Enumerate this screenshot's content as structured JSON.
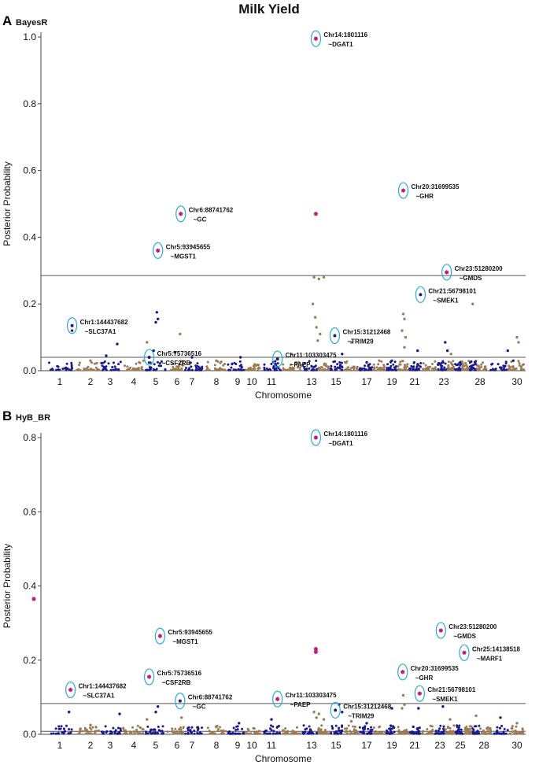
{
  "title": "Milk Yield",
  "chart_data": [
    {
      "type": "scatter",
      "panel_label": "A",
      "panel_title": "BayesR",
      "ylabel": "Posterior Probability",
      "xlabel": "Chromosome",
      "ylim": [
        0,
        1.0
      ],
      "yticks": [
        0.0,
        0.2,
        0.4,
        0.6,
        0.8,
        1.0
      ],
      "ytick_labels": [
        "0.0",
        "0.2",
        "0.4",
        "0.6",
        "0.8",
        "1.0"
      ],
      "x_tick_labels": [
        "1",
        "2",
        "3",
        "4",
        "5",
        "6",
        "7",
        "8",
        "9",
        "10",
        "11",
        "13",
        "15",
        "17",
        "19",
        "21",
        "23",
        "28",
        "30"
      ],
      "x_tick_positions": [
        1,
        2,
        3,
        4,
        5,
        6,
        7,
        8,
        9,
        10,
        11,
        13,
        15,
        17,
        19,
        21,
        23,
        28,
        30
      ],
      "thresholds": [
        0.285,
        0.04
      ],
      "colors": {
        "odd_chromosome": "#1a1a8c",
        "even_chromosome": "#9c7b55",
        "highlight": "#c2187a",
        "circle": "#29a9e0"
      },
      "series": [
        {
          "name": "background-odd",
          "color": "#1a1a8c",
          "points": [
            {
              "chr": 5.05,
              "y": 0.175
            },
            {
              "chr": 5.0,
              "y": 0.145
            },
            {
              "chr": 5.1,
              "y": 0.155
            },
            {
              "chr": 4.9,
              "y": 0.06
            },
            {
              "chr": 3.3,
              "y": 0.08
            },
            {
              "chr": 1.4,
              "y": 0.12
            },
            {
              "chr": 2.8,
              "y": 0.045
            },
            {
              "chr": 5.9,
              "y": 0.055
            },
            {
              "chr": 7.0,
              "y": 0.04
            },
            {
              "chr": 9.2,
              "y": 0.04
            },
            {
              "chr": 11.2,
              "y": 0.02
            },
            {
              "chr": 15.4,
              "y": 0.05
            },
            {
              "chr": 21.2,
              "y": 0.06
            },
            {
              "chr": 23.2,
              "y": 0.085
            },
            {
              "chr": 23.5,
              "y": 0.06
            },
            {
              "chr": 29.5,
              "y": 0.06
            },
            {
              "chr": 29.8,
              "y": 0.03
            },
            {
              "chr": 19.0,
              "y": 0.03
            },
            {
              "chr": 17.0,
              "y": 0.025
            }
          ]
        },
        {
          "name": "background-even",
          "color": "#9c7b55",
          "points": [
            {
              "chr": 6.2,
              "y": 0.11
            },
            {
              "chr": 4.6,
              "y": 0.085
            },
            {
              "chr": 13.2,
              "y": 0.28
            },
            {
              "chr": 13.6,
              "y": 0.275
            },
            {
              "chr": 13.1,
              "y": 0.2
            },
            {
              "chr": 13.3,
              "y": 0.16
            },
            {
              "chr": 13.4,
              "y": 0.13
            },
            {
              "chr": 13.7,
              "y": 0.11
            },
            {
              "chr": 13.5,
              "y": 0.09
            },
            {
              "chr": 14.0,
              "y": 0.28
            },
            {
              "chr": 20.0,
              "y": 0.17
            },
            {
              "chr": 20.1,
              "y": 0.155
            },
            {
              "chr": 19.9,
              "y": 0.12
            },
            {
              "chr": 20.2,
              "y": 0.1
            },
            {
              "chr": 20.1,
              "y": 0.07
            },
            {
              "chr": 27.0,
              "y": 0.2
            },
            {
              "chr": 30.0,
              "y": 0.1
            },
            {
              "chr": 30.1,
              "y": 0.085
            },
            {
              "chr": 24.0,
              "y": 0.05
            },
            {
              "chr": 16.0,
              "y": 0.085
            },
            {
              "chr": 12.0,
              "y": 0.05
            },
            {
              "chr": 8.0,
              "y": 0.03
            },
            {
              "chr": 18.0,
              "y": 0.03
            },
            {
              "chr": 2.0,
              "y": 0.03
            }
          ]
        }
      ],
      "highlighted": [
        {
          "chr": 13.35,
          "y": 0.995,
          "line1": "Chr14:1801116",
          "line2": "~DGAT1",
          "circled": true,
          "star": true
        },
        {
          "chr": 20.0,
          "y": 0.54,
          "line1": "Chr20:31699535",
          "line2": "~GHR",
          "circled": true,
          "star": true
        },
        {
          "chr": 6.25,
          "y": 0.47,
          "line1": "Chr6:88741762",
          "line2": "~GC",
          "circled": true,
          "star": true
        },
        {
          "chr": 13.35,
          "y": 0.47,
          "line1": "",
          "line2": "",
          "circled": false,
          "star": true
        },
        {
          "chr": 5.1,
          "y": 0.36,
          "line1": "Chr5:93945655",
          "line2": "~MGST1",
          "circled": true,
          "star": true
        },
        {
          "chr": 23.4,
          "y": 0.295,
          "line1": "Chr23:51280200",
          "line2": "~GMDS",
          "circled": true,
          "star": true
        },
        {
          "chr": 21.4,
          "y": 0.228,
          "line1": "Chr21:56798101",
          "line2": "~SMEK1",
          "circled": true,
          "star": false
        },
        {
          "chr": 1.4,
          "y": 0.135,
          "line1": "Chr1:144437682",
          "line2": "~SLC37A1",
          "circled": true,
          "star": false
        },
        {
          "chr": 14.9,
          "y": 0.105,
          "line1": "Chr15:31212468",
          "line2": "~TRIM29",
          "circled": true,
          "star": false
        },
        {
          "chr": 4.7,
          "y": 0.04,
          "line1": "Chr5:75736516",
          "line2": "~CSF2RB",
          "circled": true,
          "star": false
        },
        {
          "chr": 11.3,
          "y": 0.035,
          "line1": "Chr11:103303475",
          "line2": "~PAEP",
          "circled": true,
          "star": false
        }
      ]
    },
    {
      "type": "scatter",
      "panel_label": "B",
      "panel_title": "HyB_BR",
      "ylabel": "Posterior Probability",
      "xlabel": "Chromosome",
      "ylim": [
        0,
        0.8
      ],
      "yticks": [
        0.0,
        0.2,
        0.4,
        0.6,
        0.8
      ],
      "ytick_labels": [
        "0.0",
        "0.2",
        "0.4",
        "0.6",
        "0.8"
      ],
      "x_tick_labels": [
        "1",
        "2",
        "3",
        "4",
        "5",
        "6",
        "7",
        "8",
        "9",
        "10",
        "11",
        "13",
        "15",
        "17",
        "19",
        "21",
        "23",
        "25",
        "28",
        "30"
      ],
      "x_tick_positions": [
        1,
        2,
        3,
        4,
        5,
        6,
        7,
        8,
        9,
        10,
        11,
        13,
        15,
        17,
        19,
        21,
        23,
        25,
        28,
        30
      ],
      "thresholds": [
        0.083,
        0.008
      ],
      "colors": {
        "odd_chromosome": "#1a1a8c",
        "even_chromosome": "#9c7b55",
        "highlight": "#c2187a",
        "circle": "#29a9e0"
      },
      "series": [
        {
          "name": "background-odd",
          "color": "#1a1a8c",
          "points": [
            {
              "chr": 5.1,
              "y": 0.075
            },
            {
              "chr": 5.0,
              "y": 0.06
            },
            {
              "chr": 1.3,
              "y": 0.06
            },
            {
              "chr": 15.2,
              "y": 0.08
            },
            {
              "chr": 15.4,
              "y": 0.06
            },
            {
              "chr": 19.0,
              "y": 0.07
            },
            {
              "chr": 21.3,
              "y": 0.07
            },
            {
              "chr": 23.3,
              "y": 0.075
            },
            {
              "chr": 3.4,
              "y": 0.055
            },
            {
              "chr": 9.1,
              "y": 0.03
            },
            {
              "chr": 11.0,
              "y": 0.04
            },
            {
              "chr": 29.0,
              "y": 0.045
            },
            {
              "chr": 17.0,
              "y": 0.03
            }
          ]
        },
        {
          "name": "background-even",
          "color": "#9c7b55",
          "points": [
            {
              "chr": 13.2,
              "y": 0.06
            },
            {
              "chr": 13.6,
              "y": 0.055
            },
            {
              "chr": 13.4,
              "y": 0.045
            },
            {
              "chr": 20.0,
              "y": 0.105
            },
            {
              "chr": 20.1,
              "y": 0.08
            },
            {
              "chr": 19.9,
              "y": 0.07
            },
            {
              "chr": 4.6,
              "y": 0.04
            },
            {
              "chr": 6.3,
              "y": 0.045
            },
            {
              "chr": 14.0,
              "y": 0.04
            },
            {
              "chr": 27.0,
              "y": 0.05
            },
            {
              "chr": 24.0,
              "y": 0.04
            },
            {
              "chr": 16.0,
              "y": 0.035
            },
            {
              "chr": 30.0,
              "y": 0.03
            },
            {
              "chr": 2.0,
              "y": 0.025
            },
            {
              "chr": 8.0,
              "y": 0.02
            }
          ]
        }
      ],
      "highlighted": [
        {
          "chr": 13.35,
          "y": 0.8,
          "line1": "Chr14:1801116",
          "line2": "~DGAT1",
          "circled": true,
          "star": true
        },
        {
          "chr": -0.1,
          "y": 0.365,
          "line1": "",
          "line2": "",
          "circled": false,
          "star": true
        },
        {
          "chr": 5.2,
          "y": 0.265,
          "line1": "Chr5:93945655",
          "line2": "~MGST1",
          "circled": true,
          "star": true
        },
        {
          "chr": 13.35,
          "y": 0.23,
          "line1": "",
          "line2": "",
          "circled": false,
          "star": true
        },
        {
          "chr": 13.35,
          "y": 0.222,
          "line1": "",
          "line2": "",
          "circled": false,
          "star": true
        },
        {
          "chr": 23.1,
          "y": 0.28,
          "line1": "Chr23:51280200",
          "line2": "~GMDS",
          "circled": true,
          "star": true
        },
        {
          "chr": 25.5,
          "y": 0.22,
          "line1": "Chr25:14138518",
          "line2": "~MARF1",
          "circled": true,
          "star": true
        },
        {
          "chr": 4.7,
          "y": 0.155,
          "line1": "Chr5:75736516",
          "line2": "~CSF2RB",
          "circled": true,
          "star": true
        },
        {
          "chr": 19.95,
          "y": 0.168,
          "line1": "Chr20:31699535",
          "line2": "~GHR",
          "circled": true,
          "star": true
        },
        {
          "chr": 1.35,
          "y": 0.12,
          "line1": "Chr1:144437682",
          "line2": "~SLC37A1",
          "circled": true,
          "star": true
        },
        {
          "chr": 21.4,
          "y": 0.11,
          "line1": "Chr21:56798101",
          "line2": "~SMEK1",
          "circled": true,
          "star": true
        },
        {
          "chr": 11.3,
          "y": 0.095,
          "line1": "Chr11:103303475",
          "line2": "~PAEP",
          "circled": true,
          "star": true
        },
        {
          "chr": 6.2,
          "y": 0.09,
          "line1": "Chr6:88741762",
          "line2": "~GC",
          "circled": true,
          "star": false
        },
        {
          "chr": 14.95,
          "y": 0.065,
          "line1": "Chr15:31212468",
          "line2": "~TRIM29",
          "circled": true,
          "star": false
        }
      ]
    }
  ]
}
